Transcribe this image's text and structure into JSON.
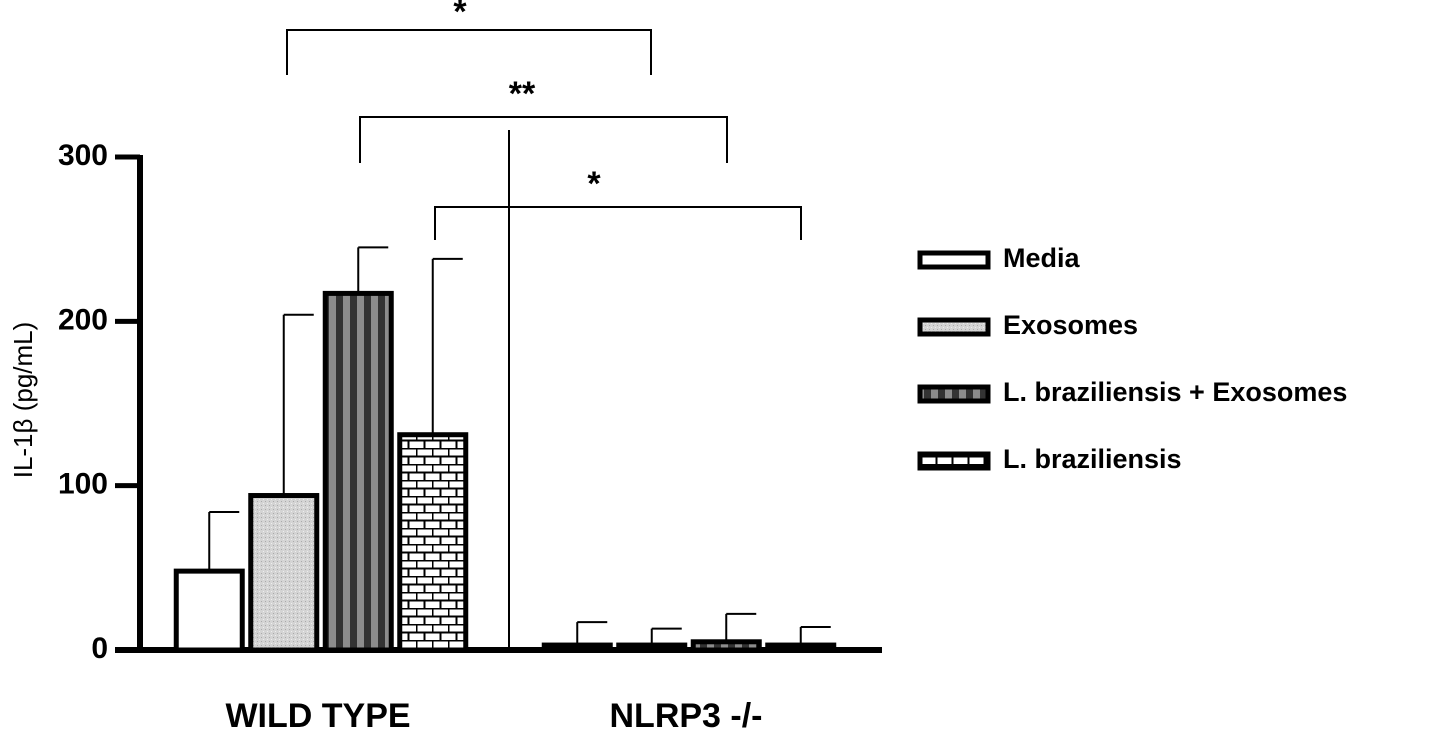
{
  "chart_data": {
    "type": "bar",
    "y_label": "IL-1β (pg/mL)",
    "categories": [
      "WILD TYPE",
      "NLRP3 -/-"
    ],
    "series": [
      {
        "name": "Media",
        "color": "#ffffff",
        "values": [
          48,
          3
        ],
        "errors": [
          36,
          14
        ]
      },
      {
        "name": "Exosomes",
        "color": "#d4d4d4",
        "values": [
          94,
          3
        ],
        "errors": [
          110,
          10
        ]
      },
      {
        "name": "L. braziliensis + Exosomes",
        "color": "#8c8c8c",
        "values": [
          217,
          5
        ],
        "errors": [
          28,
          17
        ]
      },
      {
        "name": "L. braziliensis",
        "color": "#ffffff",
        "values": [
          131,
          3
        ],
        "errors": [
          107,
          11
        ]
      }
    ],
    "annotations": [
      "*",
      "**",
      "*"
    ],
    "ylim": [
      0,
      300
    ],
    "yticks": [
      0,
      100,
      200,
      300
    ]
  }
}
